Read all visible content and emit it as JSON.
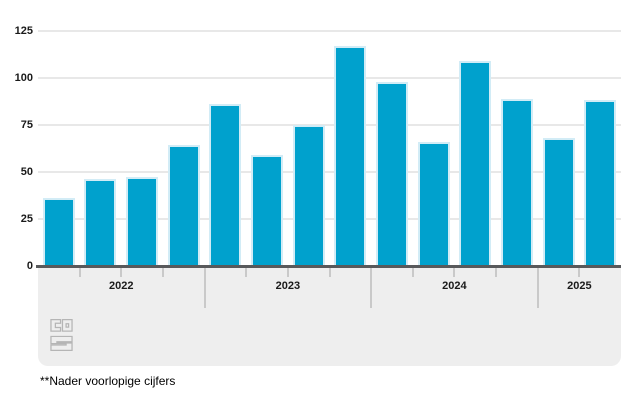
{
  "chart_data": {
    "type": "bar",
    "title": "",
    "values": [
      36,
      46,
      47,
      64,
      86,
      59,
      75,
      117,
      98,
      66,
      109,
      89,
      68,
      88
    ],
    "x_groups": [
      {
        "label": "2022",
        "bar_count": 4
      },
      {
        "label": "2023",
        "bar_count": 4
      },
      {
        "label": "2024",
        "bar_count": 4
      },
      {
        "label": "2025",
        "bar_count": 2
      }
    ],
    "xlabel": "",
    "ylabel": "",
    "ylim": [
      0,
      125
    ],
    "yticks": [
      0,
      25,
      50,
      75,
      100,
      125
    ],
    "grid": true,
    "legend": false,
    "footnote": "**Nader voorlopige cijfers"
  },
  "branding": {
    "logo_icon": "cbs-logo-icon"
  },
  "colors": {
    "bar": "#00a1cd",
    "bar_edge": "#d2ecf6",
    "axis_line": "#58595b",
    "grid": "#e8e8e8",
    "band": "#eeeeee",
    "tick": "#c9c9c9",
    "text": "#1a1a1a",
    "logo": "#b5b5b5"
  }
}
